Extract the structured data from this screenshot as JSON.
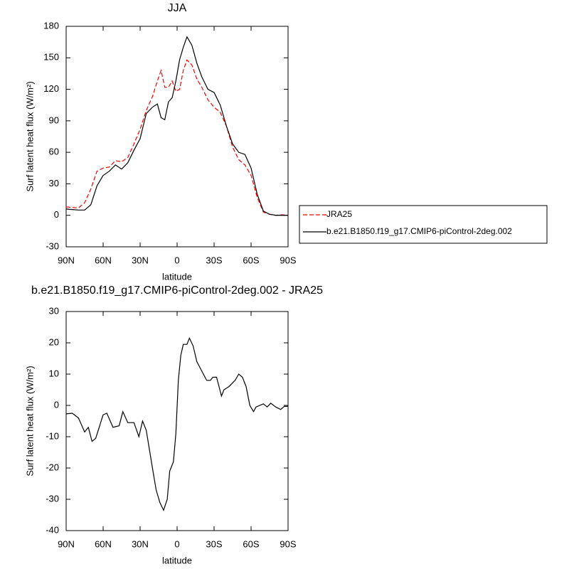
{
  "chart_data": [
    {
      "type": "line",
      "title": "JJA",
      "xlabel": "latitude",
      "ylabel": "Surf latent heat flux (W/m²)",
      "x": [
        90,
        85,
        80,
        75,
        70,
        65,
        60,
        55,
        50,
        45,
        40,
        35,
        30,
        25,
        20,
        16,
        13,
        10,
        7,
        4,
        1,
        -2,
        -5,
        -8,
        -12,
        -16,
        -20,
        -25,
        -30,
        -35,
        -40,
        -45,
        -50,
        -55,
        -60,
        -65,
        -70,
        -75,
        -80,
        -85,
        -90
      ],
      "series": [
        {
          "name": "JRA25",
          "color": "#ff0000",
          "line_style": "dashed",
          "values": [
            8,
            7.5,
            7,
            12,
            25,
            42,
            45,
            46,
            52,
            51,
            55,
            68,
            82,
            100,
            113,
            128,
            138,
            122,
            122,
            128,
            118,
            120,
            138,
            148,
            143,
            130,
            122,
            110,
            103,
            98,
            85,
            65,
            53,
            48,
            38,
            17,
            3,
            1,
            0,
            0.5,
            0
          ]
        },
        {
          "name": "b.e21.B1850.f19_g17.CMIP6-piControl-2deg.002",
          "color": "#000000",
          "line_style": "solid",
          "values": [
            6,
            5.5,
            5,
            5,
            10,
            28,
            38,
            42,
            48,
            44,
            50,
            62,
            73,
            97,
            103,
            106,
            93,
            91,
            108,
            112,
            128,
            148,
            160,
            170,
            162,
            145,
            132,
            120,
            117,
            105,
            85,
            68,
            60,
            58,
            45,
            20,
            4,
            1,
            0,
            0,
            0
          ]
        }
      ],
      "xlim": [
        90,
        -90
      ],
      "xticks": [
        {
          "value": 90,
          "label": "90N"
        },
        {
          "value": 60,
          "label": "60N"
        },
        {
          "value": 30,
          "label": "30N"
        },
        0,
        {
          "value": -30,
          "label": "30S"
        },
        {
          "value": -60,
          "label": "60S"
        },
        {
          "value": -90,
          "label": "90S"
        }
      ],
      "ylim": [
        -30,
        180
      ],
      "yticks": [
        -30,
        0,
        30,
        60,
        90,
        120,
        150,
        180
      ],
      "legend": "right"
    },
    {
      "type": "line",
      "title": "b.e21.B1850.f19_g17.CMIP6-piControl-2deg.002 - JRA25",
      "xlabel": "latitude",
      "ylabel": "Surf latent heat flux (W/m²)",
      "x": [
        90,
        85,
        80,
        75,
        72,
        69,
        66,
        60,
        57,
        52,
        47,
        44,
        40,
        35,
        31,
        28,
        25,
        20,
        17,
        14,
        11,
        8,
        6,
        3,
        1,
        -1,
        -3,
        -5,
        -8,
        -10,
        -13,
        -16,
        -20,
        -24,
        -27,
        -29,
        -32,
        -36,
        -38,
        -42,
        -47,
        -50,
        -53,
        -56,
        -59,
        -62,
        -64,
        -70,
        -73,
        -76,
        -80,
        -84,
        -87,
        -90
      ],
      "series": [
        {
          "color": "#000000",
          "line_style": "solid",
          "values": [
            -2.7,
            -2.5,
            -4,
            -8.5,
            -7,
            -11.5,
            -10.5,
            -3,
            -2.5,
            -7,
            -6.5,
            -2,
            -5.5,
            -5.5,
            -10,
            -5,
            -8,
            -20,
            -27,
            -31,
            -33.5,
            -30,
            -21,
            -18,
            -9,
            8,
            16,
            19.5,
            19.5,
            21.5,
            19,
            14,
            11,
            8,
            8,
            9,
            9,
            3,
            5,
            6,
            8,
            10,
            9,
            6,
            0,
            -2,
            -0.5,
            0.5,
            -0.5,
            0.7,
            -0.5,
            -1.3,
            -0.3,
            -0.3
          ]
        }
      ],
      "xlim": [
        90,
        -90
      ],
      "xticks": [
        {
          "value": 90,
          "label": "90N"
        },
        {
          "value": 60,
          "label": "60N"
        },
        {
          "value": 30,
          "label": "30N"
        },
        0,
        {
          "value": -30,
          "label": "30S"
        },
        {
          "value": -60,
          "label": "60S"
        },
        {
          "value": -90,
          "label": "90S"
        }
      ],
      "ylim": [
        -40,
        30
      ],
      "yticks": [
        -40,
        -30,
        -20,
        -10,
        0,
        10,
        20,
        30
      ]
    }
  ]
}
